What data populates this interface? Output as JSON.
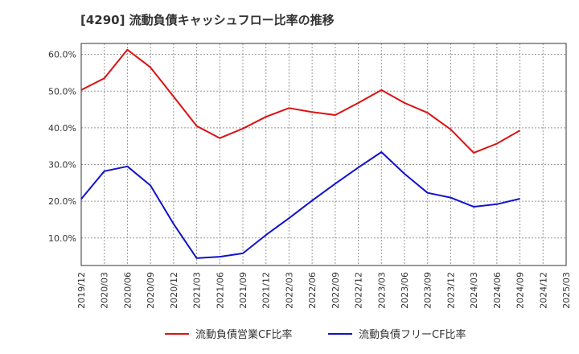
{
  "title": "[4290]  流動負債キャッシュフロー比率の推移",
  "colors": {
    "series1": "#dd1111",
    "series2": "#1111cc",
    "grid": "#999999",
    "axis": "#333333"
  },
  "chart_data": {
    "type": "line",
    "title": "[4290]  流動負債キャッシュフロー比率の推移",
    "xlabel": "",
    "ylabel": "",
    "ylim": [
      2.5,
      63
    ],
    "grid": true,
    "legend": "bottom",
    "x_ticks": [
      "2019/12",
      "2020/03",
      "2020/06",
      "2020/09",
      "2020/12",
      "2021/03",
      "2021/06",
      "2021/09",
      "2021/12",
      "2022/03",
      "2022/06",
      "2022/09",
      "2022/12",
      "2023/03",
      "2023/06",
      "2023/09",
      "2023/12",
      "2024/03",
      "2024/06",
      "2024/09",
      "2024/12",
      "2025/03"
    ],
    "y_ticks": [
      {
        "value": 10,
        "label": "10.0%"
      },
      {
        "value": 20,
        "label": "20.0%"
      },
      {
        "value": 30,
        "label": "30.0%"
      },
      {
        "value": 40,
        "label": "40.0%"
      },
      {
        "value": 50,
        "label": "50.0%"
      },
      {
        "value": 60,
        "label": "60.0%"
      }
    ],
    "series": [
      {
        "name": "流動負債営業CF比率",
        "color": "#dd1111",
        "points": [
          {
            "x": "2019/12",
            "y": 50.3
          },
          {
            "x": "2020/03",
            "y": 53.5
          },
          {
            "x": "2020/06",
            "y": 61.3
          },
          {
            "x": "2020/09",
            "y": 56.5
          },
          {
            "x": "2020/12",
            "y": 48.5
          },
          {
            "x": "2021/03",
            "y": 40.5
          },
          {
            "x": "2021/06",
            "y": 37.2
          },
          {
            "x": "2021/09",
            "y": 39.8
          },
          {
            "x": "2021/12",
            "y": 43.0
          },
          {
            "x": "2022/03",
            "y": 45.4
          },
          {
            "x": "2022/06",
            "y": 44.3
          },
          {
            "x": "2022/09",
            "y": 43.5
          },
          {
            "x": "2022/12",
            "y": 46.8
          },
          {
            "x": "2023/03",
            "y": 50.3
          },
          {
            "x": "2023/06",
            "y": 46.8
          },
          {
            "x": "2023/09",
            "y": 44.1
          },
          {
            "x": "2023/12",
            "y": 39.6
          },
          {
            "x": "2024/03",
            "y": 33.2
          },
          {
            "x": "2024/06",
            "y": 35.7
          },
          {
            "x": "2024/09",
            "y": 39.3
          }
        ]
      },
      {
        "name": "流動負債フリーCF比率",
        "color": "#1111cc",
        "points": [
          {
            "x": "2019/12",
            "y": 20.6
          },
          {
            "x": "2020/03",
            "y": 28.2
          },
          {
            "x": "2020/06",
            "y": 29.5
          },
          {
            "x": "2020/09",
            "y": 24.3
          },
          {
            "x": "2020/12",
            "y": 13.8
          },
          {
            "x": "2021/03",
            "y": 4.5
          },
          {
            "x": "2021/06",
            "y": 4.9
          },
          {
            "x": "2021/09",
            "y": 5.8
          },
          {
            "x": "2021/12",
            "y": 10.8
          },
          {
            "x": "2022/03",
            "y": 15.4
          },
          {
            "x": "2022/06",
            "y": 20.2
          },
          {
            "x": "2022/09",
            "y": 24.8
          },
          {
            "x": "2022/12",
            "y": 29.2
          },
          {
            "x": "2023/03",
            "y": 33.4
          },
          {
            "x": "2023/06",
            "y": 27.5
          },
          {
            "x": "2023/09",
            "y": 22.3
          },
          {
            "x": "2023/12",
            "y": 21.0
          },
          {
            "x": "2024/03",
            "y": 18.5
          },
          {
            "x": "2024/06",
            "y": 19.2
          },
          {
            "x": "2024/09",
            "y": 20.7
          }
        ]
      }
    ]
  }
}
